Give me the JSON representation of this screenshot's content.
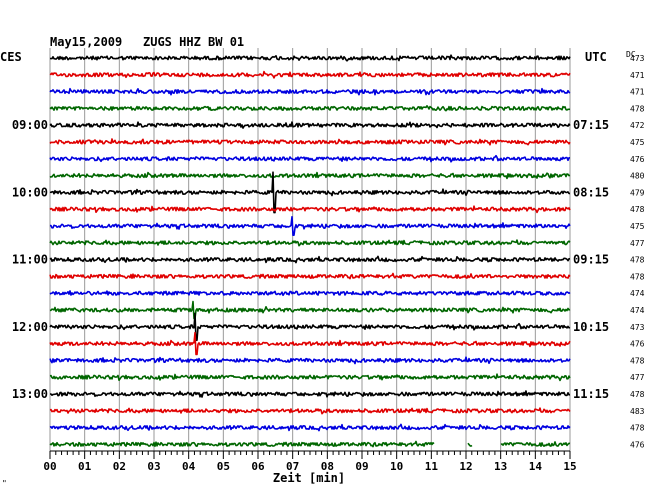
{
  "header": {
    "date": "May15,2009",
    "station": "ZUGS HHZ BW 01",
    "left_zone": "CES",
    "right_zone": "UTC",
    "dc_label": "DC"
  },
  "footer": {
    "x_axis_title": "Zeit [min]",
    "corner_mark": "\""
  },
  "chart_data": {
    "type": "line",
    "title": "May15,2009   ZUGS HHZ BW 01",
    "xlabel": "Zeit [min]",
    "ylabel": "",
    "x_range": [
      0,
      15
    ],
    "x_ticks": [
      "00",
      "01",
      "02",
      "03",
      "04",
      "05",
      "06",
      "07",
      "08",
      "09",
      "10",
      "11",
      "12",
      "13",
      "14",
      "15"
    ],
    "grid": "vertical-every-minute",
    "trace_colors": [
      "#000000",
      "#e00000",
      "#0000e0",
      "#006600"
    ],
    "rows": [
      {
        "index": 0,
        "color": "#000000",
        "dc": "473",
        "local_time": "",
        "utc_time": ""
      },
      {
        "index": 1,
        "color": "#e00000",
        "dc": "471",
        "local_time": "",
        "utc_time": ""
      },
      {
        "index": 2,
        "color": "#0000e0",
        "dc": "471",
        "local_time": "",
        "utc_time": ""
      },
      {
        "index": 3,
        "color": "#006600",
        "dc": "478",
        "local_time": "",
        "utc_time": ""
      },
      {
        "index": 4,
        "color": "#000000",
        "dc": "472",
        "local_time": "09:00",
        "utc_time": "07:15"
      },
      {
        "index": 5,
        "color": "#e00000",
        "dc": "475",
        "local_time": "",
        "utc_time": ""
      },
      {
        "index": 6,
        "color": "#0000e0",
        "dc": "476",
        "local_time": "",
        "utc_time": ""
      },
      {
        "index": 7,
        "color": "#006600",
        "dc": "480",
        "local_time": "",
        "utc_time": ""
      },
      {
        "index": 8,
        "color": "#000000",
        "dc": "479",
        "local_time": "10:00",
        "utc_time": "08:15"
      },
      {
        "index": 9,
        "color": "#e00000",
        "dc": "478",
        "local_time": "",
        "utc_time": ""
      },
      {
        "index": 10,
        "color": "#0000e0",
        "dc": "475",
        "local_time": "",
        "utc_time": ""
      },
      {
        "index": 11,
        "color": "#006600",
        "dc": "477",
        "local_time": "",
        "utc_time": ""
      },
      {
        "index": 12,
        "color": "#000000",
        "dc": "478",
        "local_time": "11:00",
        "utc_time": "09:15"
      },
      {
        "index": 13,
        "color": "#e00000",
        "dc": "478",
        "local_time": "",
        "utc_time": ""
      },
      {
        "index": 14,
        "color": "#0000e0",
        "dc": "474",
        "local_time": "",
        "utc_time": ""
      },
      {
        "index": 15,
        "color": "#006600",
        "dc": "474",
        "local_time": "",
        "utc_time": ""
      },
      {
        "index": 16,
        "color": "#000000",
        "dc": "473",
        "local_time": "12:00",
        "utc_time": "10:15"
      },
      {
        "index": 17,
        "color": "#e00000",
        "dc": "476",
        "local_time": "",
        "utc_time": ""
      },
      {
        "index": 18,
        "color": "#0000e0",
        "dc": "478",
        "local_time": "",
        "utc_time": ""
      },
      {
        "index": 19,
        "color": "#006600",
        "dc": "477",
        "local_time": "",
        "utc_time": ""
      },
      {
        "index": 20,
        "color": "#000000",
        "dc": "478",
        "local_time": "13:00",
        "utc_time": "11:15"
      },
      {
        "index": 21,
        "color": "#e00000",
        "dc": "483",
        "local_time": "",
        "utc_time": ""
      },
      {
        "index": 22,
        "color": "#0000e0",
        "dc": "478",
        "local_time": "",
        "utc_time": ""
      },
      {
        "index": 23,
        "color": "#006600",
        "dc": "476",
        "local_time": "",
        "utc_time": ""
      }
    ],
    "events": [
      {
        "row": 8,
        "minute": 6.45,
        "amplitude": 2.4
      },
      {
        "row": 10,
        "minute": 7.0,
        "amplitude": 1.1
      },
      {
        "row": 15,
        "minute": 4.15,
        "amplitude": 1.0
      },
      {
        "row": 16,
        "minute": 4.2,
        "amplitude": 1.6
      },
      {
        "row": 17,
        "minute": 4.2,
        "amplitude": 1.3
      }
    ],
    "gaps": [
      {
        "row": 23,
        "from_minute": 11.1,
        "to_minute": 12.05
      },
      {
        "row": 23,
        "from_minute": 12.2,
        "to_minute": 13.0
      }
    ]
  }
}
